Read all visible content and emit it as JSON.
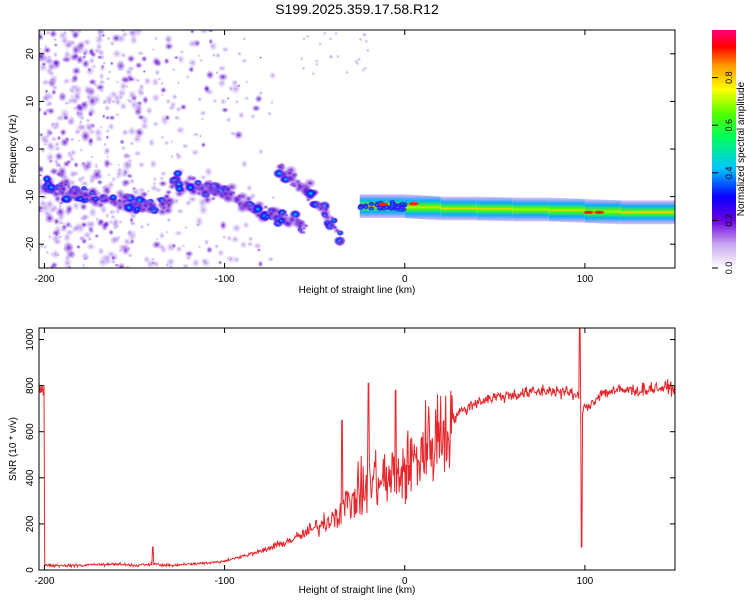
{
  "title": "S199.2025.359.17.58.R12",
  "chart_data": [
    {
      "type": "heatmap",
      "xlabel": "Height of straight line (km)",
      "ylabel": "Frequency (Hz)",
      "xlim": [
        -203,
        150
      ],
      "ylim": [
        -25,
        25
      ],
      "x_ticks": [
        -200,
        -100,
        0,
        100
      ],
      "y_ticks": [
        -20,
        -10,
        0,
        10,
        20
      ],
      "colorbar": {
        "label": "Normalized spectral amplitude",
        "range": [
          0.0,
          1.0
        ],
        "ticks": [
          0.0,
          0.2,
          0.4,
          0.6,
          0.8
        ],
        "tick_labels": [
          "0.0",
          "0.2",
          "0.4",
          "0.6",
          "0.8"
        ]
      },
      "noise_region_x": [
        -203,
        -60
      ],
      "ridges": [
        {
          "name": "low-frequency ridge",
          "x": [
            -200,
            -170,
            -150,
            -140,
            -130
          ],
          "freq": [
            -8,
            -10,
            -12,
            -12,
            -11
          ],
          "amplitude": 0.25
        },
        {
          "name": "descending branch A",
          "x": [
            -130,
            -115,
            -100,
            -85,
            -75,
            -65,
            -55
          ],
          "freq": [
            -7,
            -8,
            -9,
            -12,
            -14,
            -15,
            -17
          ],
          "amplitude": 0.3
        },
        {
          "name": "descending branch B",
          "x": [
            -70,
            -60,
            -50,
            -45,
            -40,
            -35
          ],
          "freq": [
            -5,
            -7,
            -10,
            -13,
            -16,
            -20
          ],
          "amplitude": 0.3
        },
        {
          "name": "main stable line",
          "x": [
            -25,
            0,
            20,
            40,
            60,
            80,
            100,
            120,
            150
          ],
          "freq": [
            -12,
            -12,
            -12.5,
            -12.5,
            -12.7,
            -12.7,
            -13,
            -13.3,
            -13.3
          ],
          "amplitude": 0.75
        }
      ]
    },
    {
      "type": "line",
      "xlabel": "Height of straight line (km)",
      "ylabel": "SNR (10 * v/v)",
      "xlim": [
        -203,
        150
      ],
      "ylim": [
        0,
        1050
      ],
      "x_ticks": [
        -200,
        -100,
        0,
        100
      ],
      "y_ticks": [
        0,
        200,
        400,
        600,
        800,
        1000
      ],
      "color": "#e8262b",
      "series": [
        {
          "name": "SNR",
          "x": [
            -200,
            -180,
            -160,
            -150,
            -140,
            -130,
            -120,
            -110,
            -100,
            -90,
            -80,
            -70,
            -60,
            -50,
            -40,
            -30,
            -20,
            -15,
            -10,
            -5,
            0,
            5,
            10,
            15,
            20,
            25,
            30,
            40,
            50,
            60,
            70,
            80,
            90,
            95,
            100,
            110,
            120,
            130,
            140,
            150
          ],
          "y": [
            20,
            20,
            25,
            20,
            25,
            20,
            25,
            30,
            40,
            60,
            80,
            110,
            140,
            180,
            230,
            300,
            370,
            400,
            380,
            420,
            430,
            470,
            520,
            560,
            600,
            640,
            680,
            730,
            750,
            760,
            770,
            780,
            770,
            760,
            700,
            770,
            780,
            780,
            790,
            790
          ]
        }
      ],
      "spikes": [
        {
          "x": -140,
          "y": 100
        },
        {
          "x": -35,
          "y": 650
        },
        {
          "x": -20,
          "y": 810
        },
        {
          "x": -5,
          "y": 780
        },
        {
          "x": 97,
          "y": 1060
        },
        {
          "x": 98,
          "y": 100
        }
      ]
    }
  ]
}
